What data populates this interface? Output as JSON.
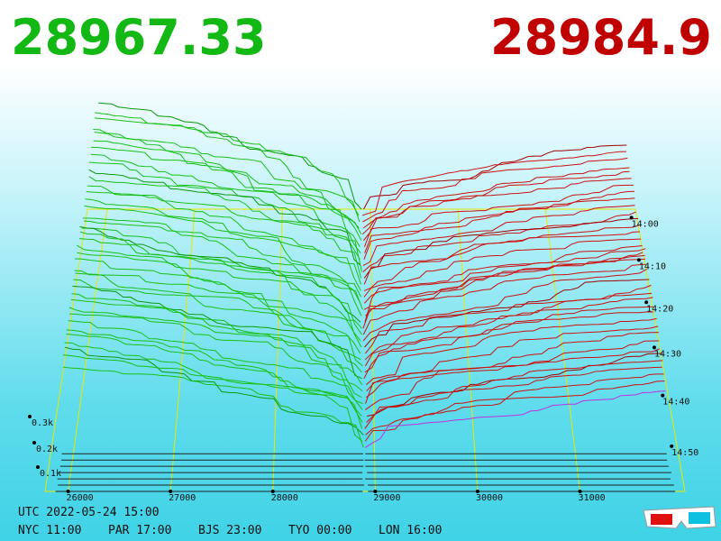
{
  "header": {
    "bid": "28967.33",
    "ask": "28984.9"
  },
  "price_labels": [
    "26000",
    "27000",
    "28000",
    "29000",
    "30000",
    "31000"
  ],
  "time_labels": [
    "14:00",
    "14:10",
    "14:20",
    "14:30",
    "14:40",
    "14:50"
  ],
  "depth_labels": [
    "0.3k",
    "0.2k",
    "0.1k"
  ],
  "footer": {
    "utc": "UTC 2022-05-24 15:00",
    "zones": [
      "NYC 11:00",
      "PAR 17:00",
      "BJS 23:00",
      "TYO 00:00",
      "LON 16:00"
    ]
  }
}
